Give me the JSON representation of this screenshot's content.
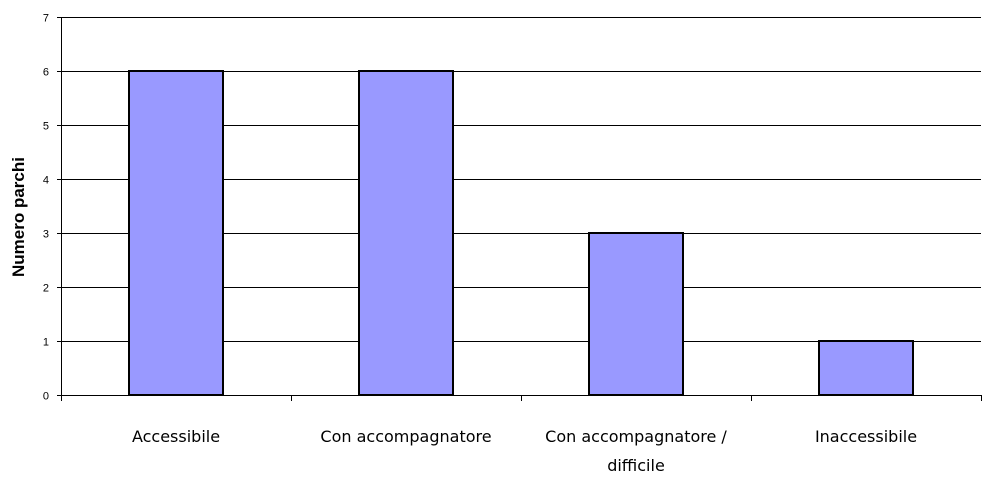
{
  "chart_data": {
    "type": "bar",
    "categories": [
      [
        "Accessibile"
      ],
      [
        "Con accompagnatore"
      ],
      [
        "Con accompagnatore /",
        "difficile"
      ],
      [
        "Inaccessibile"
      ]
    ],
    "values": [
      6,
      6,
      3,
      1
    ],
    "ylabel": "Numero parchi",
    "xlabel": "",
    "ylim": [
      0,
      7
    ],
    "yticks": [
      0,
      1,
      2,
      3,
      4,
      5,
      6,
      7
    ],
    "grid": true,
    "bar_color": "#9999ff",
    "bar_edge_color": "#000000"
  }
}
